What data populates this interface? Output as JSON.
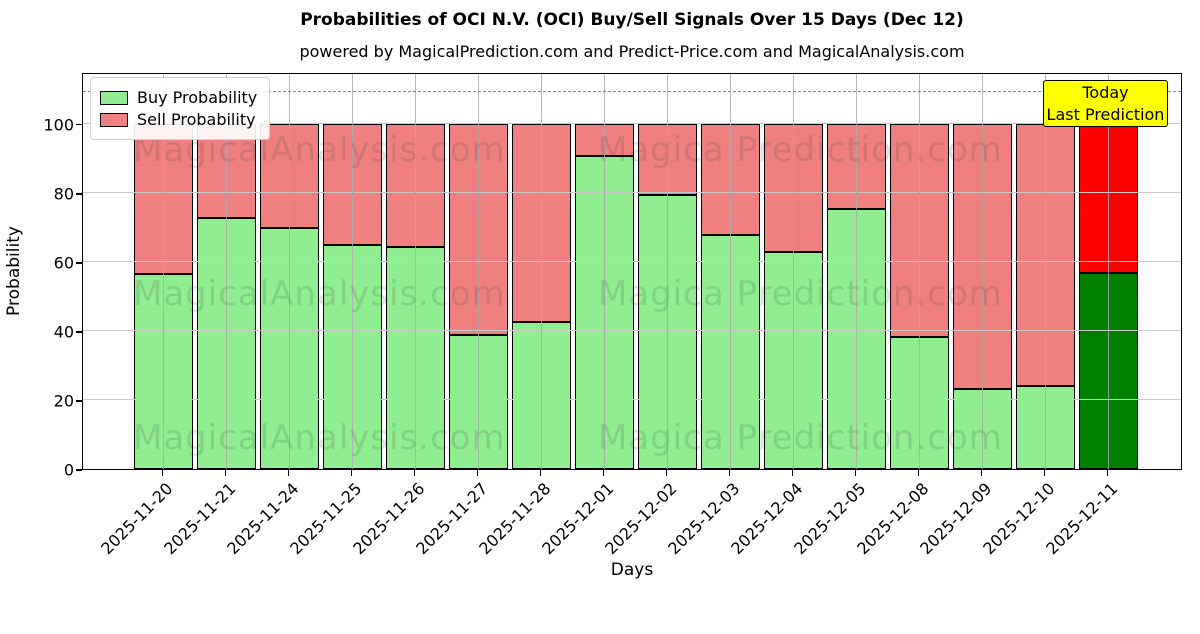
{
  "title": "Probabilities of OCI N.V. (OCI) Buy/Sell Signals Over 15 Days (Dec 12)",
  "subtitle": "powered by MagicalPrediction.com and Predict-Price.com and MagicalAnalysis.com",
  "axes": {
    "ylabel": "Probability",
    "xlabel": "Days"
  },
  "legend": {
    "items": [
      {
        "label": "Buy Probability",
        "color": "#90EE90"
      },
      {
        "label": "Sell Probability",
        "color": "#F08080"
      }
    ]
  },
  "annotation": {
    "line1": "Today",
    "line2": "Last Prediction",
    "bg_color": "#FFFF00"
  },
  "watermarks": {
    "left_text": "MagicalAnalysis.com",
    "right_text": "Magica Prediction.com"
  },
  "chart_data": {
    "type": "bar",
    "stacked": true,
    "title": "Probabilities of OCI N.V. (OCI) Buy/Sell Signals Over 15 Days (Dec 12)",
    "xlabel": "Days",
    "ylabel": "Probability",
    "ylim": [
      0,
      115
    ],
    "yticks": [
      0,
      20,
      40,
      60,
      80,
      100
    ],
    "grid": true,
    "dashed_line_y": 110,
    "legend_position": "upper left",
    "categories": [
      "2025-11-20",
      "2025-11-21",
      "2025-11-24",
      "2025-11-25",
      "2025-11-26",
      "2025-11-27",
      "2025-11-28",
      "2025-12-01",
      "2025-12-02",
      "2025-12-03",
      "2025-12-04",
      "2025-12-05",
      "2025-12-08",
      "2025-12-09",
      "2025-12-10",
      "2025-12-11"
    ],
    "series": [
      {
        "name": "Buy Probability",
        "color": "#90EE90",
        "values": [
          56.5,
          72.8,
          69.9,
          64.8,
          64.4,
          38.8,
          42.7,
          90.7,
          79.4,
          67.9,
          63.0,
          75.2,
          38.1,
          23.2,
          24.1,
          56.7
        ]
      },
      {
        "name": "Sell Probability",
        "color": "#F08080",
        "values": [
          43.5,
          27.2,
          30.1,
          35.2,
          35.6,
          61.2,
          57.3,
          9.3,
          20.6,
          32.1,
          37.0,
          24.8,
          61.9,
          76.8,
          75.9,
          43.3
        ]
      }
    ],
    "today_bar": {
      "index": 15,
      "buy_color": "#008000",
      "sell_color": "#FF0000"
    }
  }
}
